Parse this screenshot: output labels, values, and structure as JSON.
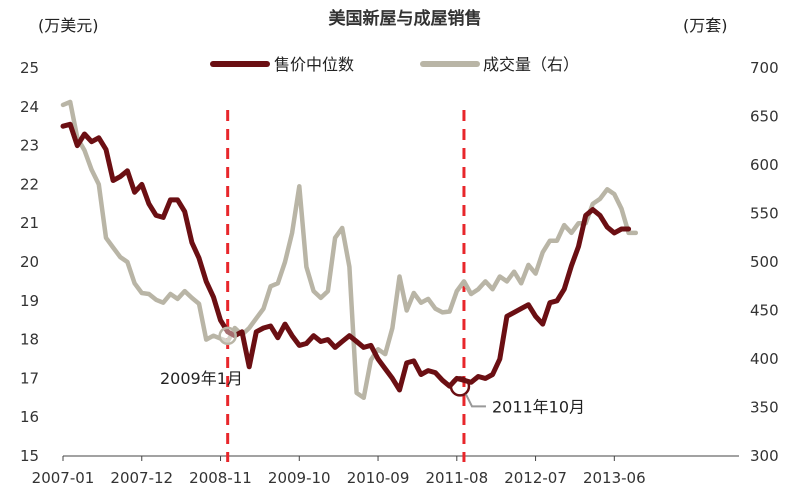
{
  "chart_data": {
    "type": "line",
    "title": "美国新屋与成屋销售",
    "left_unit": "(万美元)",
    "right_unit": "(万套)",
    "x_tick_labels": [
      "2007-01",
      "2007-12",
      "2008-11",
      "2009-10",
      "2010-09",
      "2011-08",
      "2012-07",
      "2013-06"
    ],
    "y_left": {
      "min": 15,
      "max": 25,
      "ticks": [
        15,
        16,
        17,
        18,
        19,
        20,
        21,
        22,
        23,
        24,
        25
      ]
    },
    "y_right": {
      "min": 300,
      "max": 700,
      "ticks": [
        300,
        350,
        400,
        450,
        500,
        550,
        600,
        650,
        700
      ]
    },
    "legend_position": "top-center",
    "grid": false,
    "series": [
      {
        "name": "售价中位数",
        "axis": "left",
        "color": "#6b0f13",
        "points": [
          [
            "2007-01",
            23.5
          ],
          [
            "2007-02",
            23.55
          ],
          [
            "2007-03",
            23.0
          ],
          [
            "2007-04",
            23.3
          ],
          [
            "2007-05",
            23.1
          ],
          [
            "2007-06",
            23.2
          ],
          [
            "2007-07",
            22.9
          ],
          [
            "2007-08",
            22.1
          ],
          [
            "2007-09",
            22.2
          ],
          [
            "2007-10",
            22.35
          ],
          [
            "2007-11",
            21.8
          ],
          [
            "2007-12",
            22.0
          ],
          [
            "2008-01",
            21.5
          ],
          [
            "2008-02",
            21.2
          ],
          [
            "2008-03",
            21.15
          ],
          [
            "2008-04",
            21.6
          ],
          [
            "2008-05",
            21.6
          ],
          [
            "2008-06",
            21.3
          ],
          [
            "2008-07",
            20.5
          ],
          [
            "2008-08",
            20.1
          ],
          [
            "2008-09",
            19.5
          ],
          [
            "2008-10",
            19.1
          ],
          [
            "2008-11",
            18.5
          ],
          [
            "2008-12",
            18.2
          ],
          [
            "2009-01",
            18.1
          ],
          [
            "2009-02",
            18.2
          ],
          [
            "2009-03",
            17.3
          ],
          [
            "2009-04",
            18.2
          ],
          [
            "2009-05",
            18.3
          ],
          [
            "2009-06",
            18.35
          ],
          [
            "2009-07",
            18.05
          ],
          [
            "2009-08",
            18.4
          ],
          [
            "2009-09",
            18.1
          ],
          [
            "2009-10",
            17.85
          ],
          [
            "2009-11",
            17.9
          ],
          [
            "2009-12",
            18.1
          ],
          [
            "2010-01",
            17.95
          ],
          [
            "2010-02",
            18.0
          ],
          [
            "2010-03",
            17.8
          ],
          [
            "2010-04",
            17.95
          ],
          [
            "2010-05",
            18.1
          ],
          [
            "2010-06",
            17.95
          ],
          [
            "2010-07",
            17.8
          ],
          [
            "2010-08",
            17.85
          ],
          [
            "2010-09",
            17.5
          ],
          [
            "2010-10",
            17.25
          ],
          [
            "2010-11",
            17.0
          ],
          [
            "2010-12",
            16.7
          ],
          [
            "2011-01",
            17.4
          ],
          [
            "2011-02",
            17.45
          ],
          [
            "2011-03",
            17.1
          ],
          [
            "2011-04",
            17.2
          ],
          [
            "2011-05",
            17.15
          ],
          [
            "2011-06",
            16.95
          ],
          [
            "2011-07",
            16.8
          ],
          [
            "2011-08",
            17.0
          ],
          [
            "2011-09",
            16.95
          ],
          [
            "2011-10",
            16.9
          ],
          [
            "2011-11",
            17.05
          ],
          [
            "2011-12",
            17.0
          ],
          [
            "2012-01",
            17.1
          ],
          [
            "2012-02",
            17.5
          ],
          [
            "2012-03",
            18.6
          ],
          [
            "2012-04",
            18.7
          ],
          [
            "2012-05",
            18.8
          ],
          [
            "2012-06",
            18.9
          ],
          [
            "2012-07",
            18.6
          ],
          [
            "2012-08",
            18.4
          ],
          [
            "2012-09",
            18.95
          ],
          [
            "2012-10",
            19.0
          ],
          [
            "2012-11",
            19.3
          ],
          [
            "2012-12",
            19.9
          ],
          [
            "2013-01",
            20.4
          ],
          [
            "2013-02",
            21.2
          ],
          [
            "2013-03",
            21.35
          ],
          [
            "2013-04",
            21.2
          ],
          [
            "2013-05",
            20.9
          ],
          [
            "2013-06",
            20.75
          ],
          [
            "2013-07",
            20.85
          ],
          [
            "2013-08",
            20.85
          ]
        ]
      },
      {
        "name": "成交量（右）",
        "axis": "right",
        "color": "#b9b5a6",
        "points": [
          [
            "2007-01",
            662
          ],
          [
            "2007-02",
            665
          ],
          [
            "2007-03",
            628
          ],
          [
            "2007-04",
            615
          ],
          [
            "2007-05",
            595
          ],
          [
            "2007-06",
            580
          ],
          [
            "2007-07",
            525
          ],
          [
            "2007-08",
            515
          ],
          [
            "2007-09",
            505
          ],
          [
            "2007-10",
            500
          ],
          [
            "2007-11",
            478
          ],
          [
            "2007-12",
            468
          ],
          [
            "2008-01",
            467
          ],
          [
            "2008-02",
            461
          ],
          [
            "2008-03",
            458
          ],
          [
            "2008-04",
            467
          ],
          [
            "2008-05",
            462
          ],
          [
            "2008-06",
            470
          ],
          [
            "2008-07",
            463
          ],
          [
            "2008-08",
            457
          ],
          [
            "2008-09",
            420
          ],
          [
            "2008-10",
            424
          ],
          [
            "2008-11",
            421
          ],
          [
            "2008-12",
            418
          ],
          [
            "2009-01",
            432
          ],
          [
            "2009-02",
            425
          ],
          [
            "2009-03",
            432
          ],
          [
            "2009-04",
            442
          ],
          [
            "2009-05",
            452
          ],
          [
            "2009-06",
            475
          ],
          [
            "2009-07",
            478
          ],
          [
            "2009-08",
            500
          ],
          [
            "2009-09",
            530
          ],
          [
            "2009-10",
            578
          ],
          [
            "2009-11",
            495
          ],
          [
            "2009-12",
            470
          ],
          [
            "2010-01",
            463
          ],
          [
            "2010-02",
            470
          ],
          [
            "2010-03",
            525
          ],
          [
            "2010-04",
            535
          ],
          [
            "2010-05",
            495
          ],
          [
            "2010-06",
            365
          ],
          [
            "2010-07",
            360
          ],
          [
            "2010-08",
            399
          ],
          [
            "2010-09",
            410
          ],
          [
            "2010-10",
            405
          ],
          [
            "2010-11",
            432
          ],
          [
            "2010-12",
            485
          ],
          [
            "2011-01",
            450
          ],
          [
            "2011-02",
            468
          ],
          [
            "2011-03",
            458
          ],
          [
            "2011-04",
            462
          ],
          [
            "2011-05",
            452
          ],
          [
            "2011-06",
            448
          ],
          [
            "2011-07",
            449
          ],
          [
            "2011-08",
            470
          ],
          [
            "2011-09",
            480
          ],
          [
            "2011-10",
            467
          ],
          [
            "2011-11",
            472
          ],
          [
            "2011-12",
            480
          ],
          [
            "2012-01",
            472
          ],
          [
            "2012-02",
            485
          ],
          [
            "2012-03",
            480
          ],
          [
            "2012-04",
            490
          ],
          [
            "2012-05",
            478
          ],
          [
            "2012-06",
            497
          ],
          [
            "2012-07",
            488
          ],
          [
            "2012-08",
            510
          ],
          [
            "2012-09",
            522
          ],
          [
            "2012-10",
            522
          ],
          [
            "2012-11",
            538
          ],
          [
            "2012-12",
            530
          ],
          [
            "2013-01",
            540
          ],
          [
            "2013-02",
            540
          ],
          [
            "2013-03",
            560
          ],
          [
            "2013-04",
            565
          ],
          [
            "2013-05",
            575
          ],
          [
            "2013-06",
            570
          ],
          [
            "2013-07",
            555
          ],
          [
            "2013-08",
            530
          ],
          [
            "2013-09",
            530
          ]
        ]
      }
    ],
    "markers": [
      {
        "date": "2008-12",
        "label": "2009年1月",
        "line_color": "#e8262b"
      },
      {
        "date": "2011-09",
        "label": "2011年10月",
        "line_color": "#e8262b"
      }
    ]
  }
}
